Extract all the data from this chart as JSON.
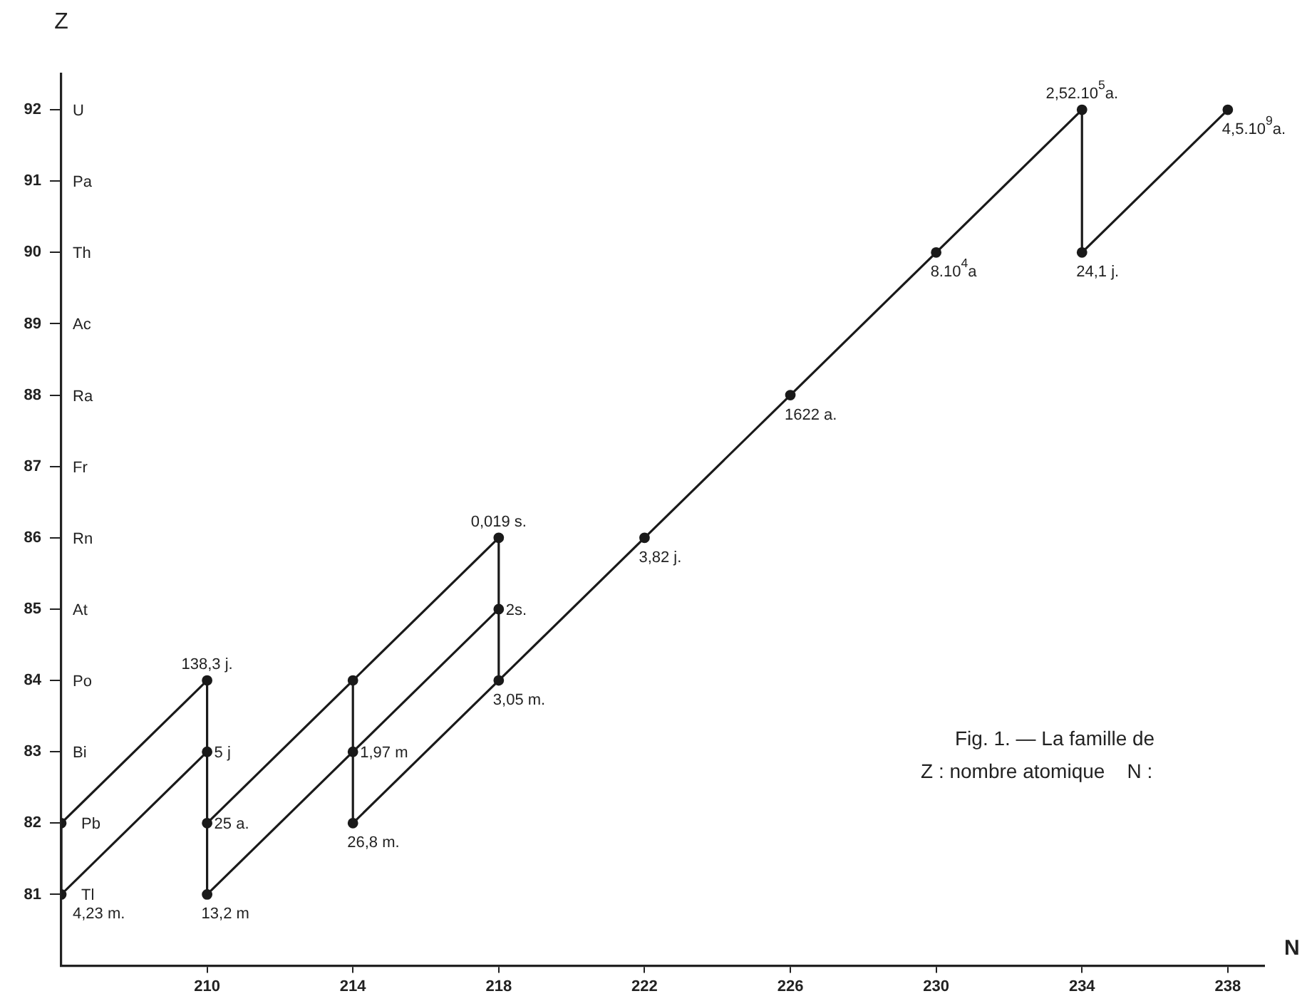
{
  "chart_data": {
    "type": "line",
    "xlabel": "N",
    "ylabel": "Z",
    "legend": false,
    "grid": false,
    "marker": "circle",
    "xlim": [
      206,
      239
    ],
    "xticks": [
      210,
      214,
      218,
      222,
      226,
      230,
      234,
      238
    ],
    "ylim": [
      80,
      92.5
    ],
    "yticks": [
      81,
      82,
      83,
      84,
      85,
      86,
      87,
      88,
      89,
      90,
      91,
      92
    ],
    "annotations": [
      "Tl",
      "Pb",
      "Bi",
      "Po",
      "At",
      "Rn",
      "Fr",
      "Ra",
      "Ac",
      "Th",
      "Pa",
      "U",
      "Fig. 1. — La famille de",
      "Z : nombre atomique    N :",
      {
        "text": "4,5.10$^{9}$a.",
        "x": 238,
        "y": 92
      },
      {
        "text": "24,1 j.",
        "x": 234,
        "y": 90
      },
      {
        "text": "2,52.10$^{5}$a.",
        "x": 234,
        "y": 92
      },
      {
        "text": "8.10$^{4}$a",
        "x": 230,
        "y": 90
      },
      {
        "text": "1622 a.",
        "x": 226,
        "y": 88
      },
      {
        "text": "3,82 j.",
        "x": 222,
        "y": 86
      },
      {
        "text": "3,05 m.",
        "x": 218,
        "y": 84
      },
      {
        "text": "2s.",
        "x": 218,
        "y": 85
      },
      {
        "text": "0,019 s.",
        "x": 218,
        "y": 86
      },
      {
        "text": "26,8 m.",
        "x": 214,
        "y": 82
      },
      {
        "text": "1,97 m",
        "x": 214,
        "y": 83
      },
      {
        "text": "13,2 m",
        "x": 210,
        "y": 81
      },
      {
        "text": "25 a.",
        "x": 210,
        "y": 82
      },
      {
        "text": "5 j",
        "x": 210,
        "y": 83
      },
      {
        "text": "138,3 j.",
        "x": 210,
        "y": 84
      },
      {
        "text": "4,23 m.",
        "x": 206,
        "y": 81
      }
    ],
    "series": [
      {
        "marker": "none",
        "color": "#1a1a1a",
        "x": [
          238,
          234,
          234,
          230,
          226,
          222,
          218,
          214,
          214,
          210
        ],
        "values": [
          92,
          90,
          92,
          90,
          88,
          86,
          84,
          82,
          84,
          82
        ]
      },
      {
        "marker": "none",
        "color": "#1a1a1a",
        "x": [
          218,
          218,
          214
        ],
        "values": [
          84,
          86,
          84
        ]
      },
      {
        "marker": "none",
        "color": "#1a1a1a",
        "x": [
          218,
          214,
          210,
          210,
          206,
          206,
          210
        ],
        "values": [
          85,
          83,
          81,
          84,
          82,
          81,
          83
        ]
      },
      {
        "type": "scatter",
        "color": "#1a1a1a",
        "x": [
          238,
          234,
          234,
          230,
          226,
          222,
          218,
          218,
          218,
          214,
          214,
          214,
          210,
          210,
          210,
          210,
          206,
          206
        ],
        "values": [
          92,
          90,
          92,
          90,
          88,
          86,
          84,
          85,
          86,
          82,
          83,
          84,
          81,
          82,
          83,
          84,
          81,
          82
        ]
      }
    ]
  }
}
